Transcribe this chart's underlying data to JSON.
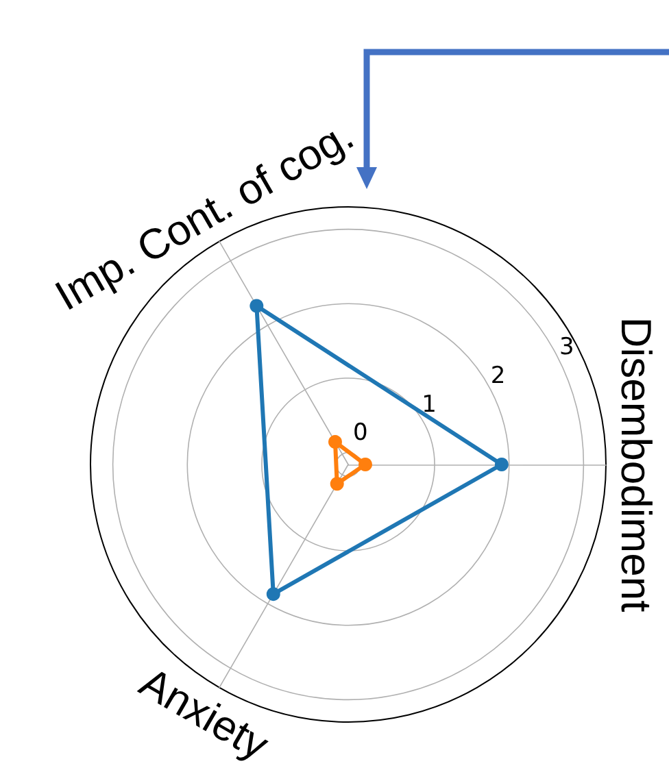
{
  "chart_data": {
    "type": "radar",
    "categories": [
      "Disembodiment",
      "Anxiety",
      "Imp. Cont. of cog."
    ],
    "series": [
      {
        "color": "#1f77b4",
        "values": [
          1.9,
          1.85,
          2.3
        ]
      },
      {
        "color": "#ff7f0e",
        "values": [
          0.07,
          0.14,
          0.19
        ]
      }
    ],
    "ylim": [
      -0.16,
      3.3
    ],
    "yticks": [
      0,
      1,
      2,
      3
    ],
    "grid": true,
    "marker": "circle",
    "line_style": "solid"
  }
}
